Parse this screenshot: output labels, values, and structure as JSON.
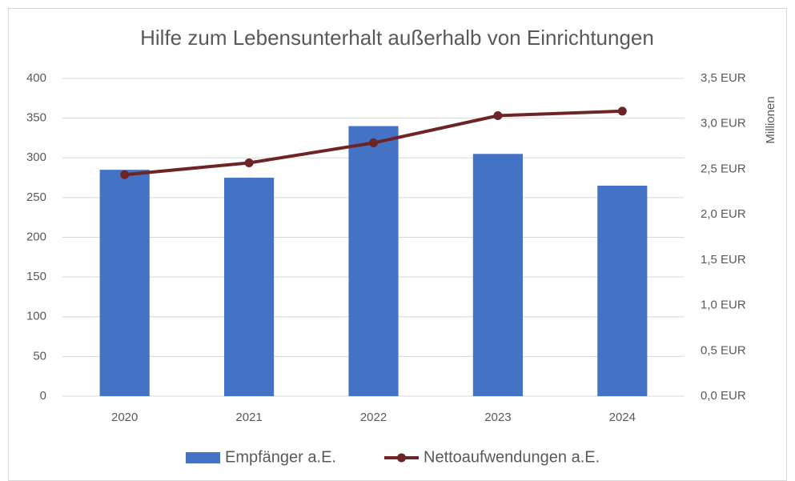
{
  "chart_data": {
    "type": "bar_line",
    "title": "Hilfe zum Lebensunterhalt außerhalb von Einrichtungen",
    "categories": [
      "2020",
      "2021",
      "2022",
      "2023",
      "2024"
    ],
    "series": [
      {
        "name": "Empfänger a.E.",
        "type": "bar",
        "color": "#4472c4",
        "values": [
          285,
          275,
          340,
          305,
          265
        ]
      },
      {
        "name": "Nettoaufwendungen a.E.",
        "type": "line",
        "axis": "y2",
        "color": "#6e2424",
        "values": [
          2.44,
          2.57,
          2.79,
          3.09,
          3.14
        ]
      }
    ],
    "ylim": [
      0,
      400
    ],
    "yticks": [
      0,
      50,
      100,
      150,
      200,
      250,
      300,
      350,
      400
    ],
    "y2label": "Millionen",
    "y2lim": [
      0,
      3.5
    ],
    "y2ticks": [
      {
        "value": 0,
        "label": "0,0 EUR"
      },
      {
        "value": 0.5,
        "label": "0,5 EUR"
      },
      {
        "value": 1,
        "label": "1,0 EUR"
      },
      {
        "value": 1.5,
        "label": "1,5 EUR"
      },
      {
        "value": 2,
        "label": "2,0 EUR"
      },
      {
        "value": 2.5,
        "label": "2,5 EUR"
      },
      {
        "value": 3,
        "label": "3,0 EUR"
      },
      {
        "value": 3.5,
        "label": "3,5 EUR"
      }
    ],
    "grid": true,
    "legend": "bottom"
  }
}
